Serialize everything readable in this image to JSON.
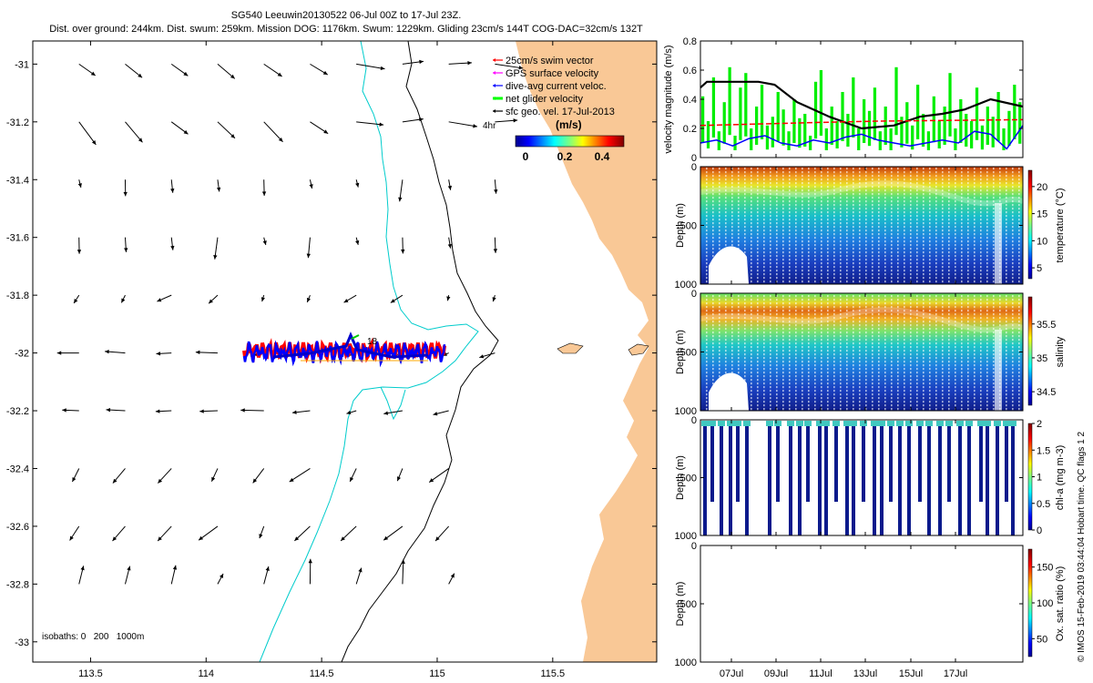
{
  "header": {
    "title": "SG540 Leeuwin20130522 06-Jul 00Z to 17-Jul 23Z.",
    "subtitle": "Dist. over ground: 244km. Dist. swum: 259km. Mission DOG: 1176km. Swum: 1229km. Gliding 23cm/s 144T COG-DAC=32cm/s 132T"
  },
  "map": {
    "legend": [
      {
        "label": "25cm/s swim vector",
        "color": "#ff0000"
      },
      {
        "label": "GPS surface velocity",
        "color": "#ff00ff"
      },
      {
        "label": "dive-avg current veloc.",
        "color": "#0000ff"
      },
      {
        "label": "net glider velocity",
        "color": "#00ff00"
      },
      {
        "label": "sfc geo. vel. 17-Jul-2013",
        "color": "#000000"
      }
    ],
    "legend_extra": "4hr",
    "colorbar_title": "(m/s)",
    "colorbar_ticks": [
      "0",
      "0.2",
      "0.4"
    ],
    "isobaths_label": "isobaths: 0   200   1000m",
    "track_label": "18",
    "land_color": "#f9c896",
    "iso200_color": "#00cccc",
    "iso1000_color": "#000000"
  },
  "chart_data": [
    {
      "type": "map",
      "xticks": [
        "113.5",
        "114",
        "114.5",
        "115",
        "115.5"
      ],
      "yticks": [
        "-31",
        "-31.2",
        "-31.4",
        "-31.6",
        "-31.8",
        "-32",
        "-32.2",
        "-32.4",
        "-32.6",
        "-32.8",
        "-33"
      ],
      "xlim": [
        113.25,
        115.95
      ],
      "ylim": [
        -33.07,
        -30.92
      ]
    },
    {
      "type": "bar",
      "ylabel": "velocity magnitude (m/s)",
      "yticks": [
        "0",
        "0.2",
        "0.4",
        "0.6",
        "0.8"
      ],
      "ylim": [
        0,
        0.8
      ],
      "series": [
        {
          "name": "net glider velocity",
          "color": "#00ee00",
          "values": [
            0.42,
            0.25,
            0.55,
            0.18,
            0.38,
            0.62,
            0.15,
            0.48,
            0.58,
            0.2,
            0.35,
            0.5,
            0.22,
            0.28,
            0.45,
            0.33,
            0.18,
            0.4,
            0.27,
            0.3,
            0.15,
            0.52,
            0.6,
            0.2,
            0.35,
            0.25,
            0.45,
            0.3,
            0.55,
            0.2,
            0.4,
            0.32,
            0.48,
            0.18,
            0.35,
            0.2,
            0.62,
            0.28,
            0.38,
            0.22,
            0.5,
            0.3,
            0.18,
            0.42,
            0.25,
            0.35,
            0.58,
            0.2,
            0.4,
            0.3,
            0.25,
            0.48,
            0.22,
            0.35,
            0.28,
            0.45,
            0.2,
            0.32,
            0.5,
            0.38
          ]
        },
        {
          "name": "sfc geo. vel.",
          "color": "#000000",
          "x": [
            0,
            0.02,
            0.18,
            0.23,
            0.3,
            0.4,
            0.5,
            0.6,
            0.68,
            0.75,
            0.82,
            0.9,
            1
          ],
          "values": [
            0.48,
            0.52,
            0.52,
            0.5,
            0.38,
            0.28,
            0.2,
            0.22,
            0.28,
            0.3,
            0.33,
            0.4,
            0.35
          ]
        },
        {
          "name": "dive-avg current",
          "color": "#0000ff",
          "x": [
            0,
            0.05,
            0.1,
            0.15,
            0.2,
            0.25,
            0.3,
            0.35,
            0.4,
            0.45,
            0.5,
            0.55,
            0.6,
            0.65,
            0.7,
            0.75,
            0.8,
            0.85,
            0.9,
            0.95,
            1
          ],
          "values": [
            0.1,
            0.12,
            0.08,
            0.13,
            0.15,
            0.1,
            0.08,
            0.12,
            0.1,
            0.14,
            0.16,
            0.12,
            0.1,
            0.08,
            0.1,
            0.12,
            0.1,
            0.18,
            0.16,
            0.06,
            0.22
          ]
        },
        {
          "name": "swim",
          "color": "#ff0000",
          "x": [
            0,
            0.35,
            0.55,
            1
          ],
          "values": [
            0.22,
            0.24,
            0.25,
            0.26
          ]
        }
      ]
    },
    {
      "type": "heatmap",
      "ylabel": "Depth (m)",
      "yticks": [
        "0",
        "500",
        "1000"
      ],
      "cbar_label": "temperature (°C)",
      "cbar_ticks": [
        "5",
        "10",
        "15",
        "20"
      ],
      "cbar_range": [
        3,
        23
      ]
    },
    {
      "type": "heatmap",
      "ylabel": "Depth (m)",
      "yticks": [
        "0",
        "500",
        "1000"
      ],
      "cbar_label": "salinity",
      "cbar_ticks": [
        "34.5",
        "35",
        "35.5"
      ],
      "cbar_range": [
        34.3,
        35.9
      ]
    },
    {
      "type": "heatmap",
      "ylabel": "Depth (m)",
      "yticks": [
        "0",
        "500",
        "1000"
      ],
      "cbar_label": "chl-a (mg m-3)",
      "cbar_ticks": [
        "0",
        "0.5",
        "1",
        "1.5",
        "2"
      ],
      "cbar_range": [
        0,
        2
      ]
    },
    {
      "type": "heatmap",
      "ylabel": "Depth (m)",
      "yticks": [
        "0",
        "500",
        "1000"
      ],
      "cbar_label": "Ox. sat. ratio (%)",
      "cbar_ticks": [
        "50",
        "100",
        "150"
      ],
      "cbar_range": [
        25,
        175
      ],
      "xticks": [
        "07Jul",
        "09Jul",
        "11Jul",
        "13Jul",
        "15Jul",
        "17Jul"
      ]
    }
  ],
  "credit": "© IMOS 15-Feb-2019 03:44:04 Hobart time. QC flags 1  2"
}
